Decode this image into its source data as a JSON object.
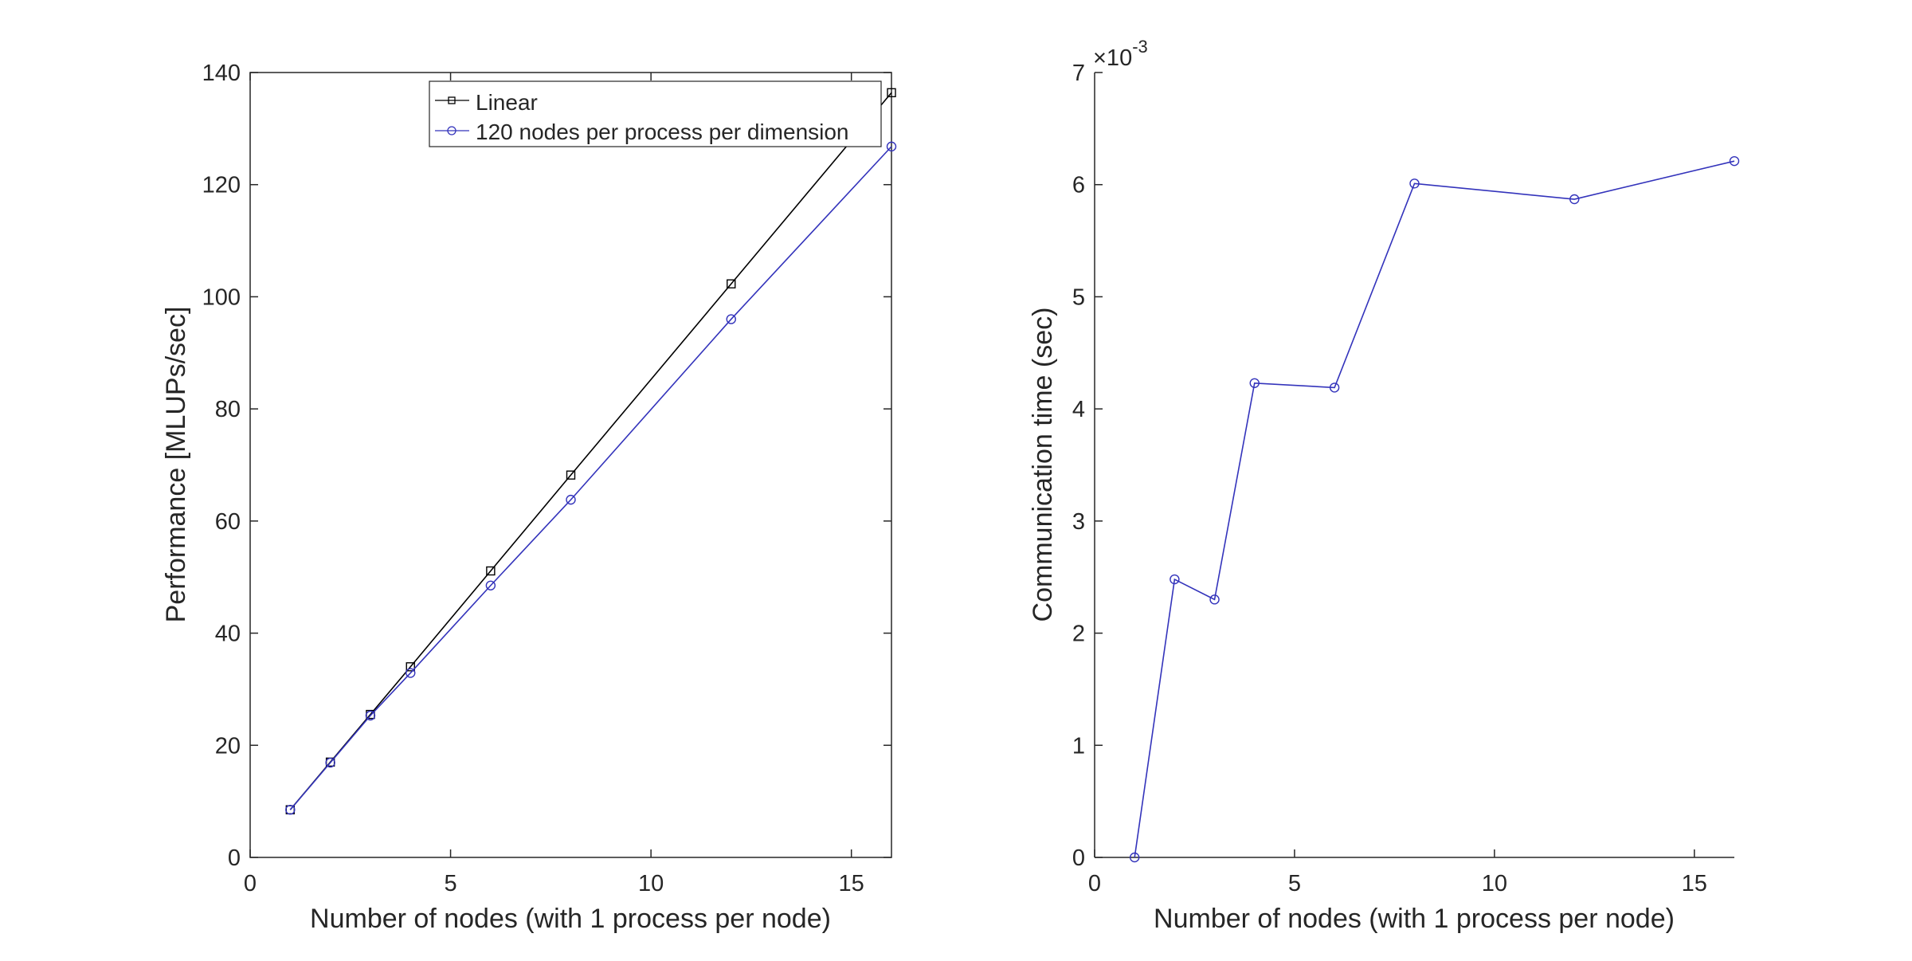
{
  "chart_data": [
    {
      "type": "line",
      "title": "",
      "xlabel": "Number of nodes (with 1 process per node)",
      "ylabel": "Performance [MLUPs/sec]",
      "xlim": [
        0,
        16
      ],
      "ylim": [
        0,
        140
      ],
      "xticks": [
        "0",
        "5",
        "10",
        "15"
      ],
      "yticks": [
        "0",
        "20",
        "40",
        "60",
        "80",
        "100",
        "120",
        "140"
      ],
      "grid": false,
      "legend_position": "top-right",
      "series": [
        {
          "name": "Linear",
          "color": "#000000",
          "marker": "square",
          "x": [
            1,
            2,
            3,
            4,
            6,
            8,
            12,
            16
          ],
          "y": [
            8.5,
            17.0,
            25.5,
            34.0,
            51.1,
            68.2,
            102.3,
            136.4
          ]
        },
        {
          "name": "120 nodes per process per dimension",
          "color": "#3333bb",
          "marker": "circle",
          "x": [
            1,
            2,
            3,
            4,
            6,
            8,
            12,
            16
          ],
          "y": [
            8.5,
            16.9,
            25.3,
            32.9,
            48.5,
            63.8,
            96.0,
            126.8
          ]
        }
      ]
    },
    {
      "type": "line",
      "title": "",
      "xlabel": "Number of nodes (with 1 process per node)",
      "ylabel": "Communication time (sec)",
      "xlim": [
        0,
        16
      ],
      "ylim": [
        0,
        7
      ],
      "xticks": [
        "0",
        "5",
        "10",
        "15"
      ],
      "yticks": [
        "0",
        "1",
        "2",
        "3",
        "4",
        "5",
        "6",
        "7"
      ],
      "exponent_label": {
        "base": "×10",
        "power": "-3"
      },
      "grid": false,
      "series": [
        {
          "color": "#3333bb",
          "marker": "circle",
          "x": [
            1,
            2,
            3,
            4,
            6,
            8,
            12,
            16
          ],
          "y": [
            0.0,
            2.48,
            2.3,
            4.23,
            4.19,
            6.01,
            5.87,
            6.21
          ]
        }
      ]
    }
  ]
}
